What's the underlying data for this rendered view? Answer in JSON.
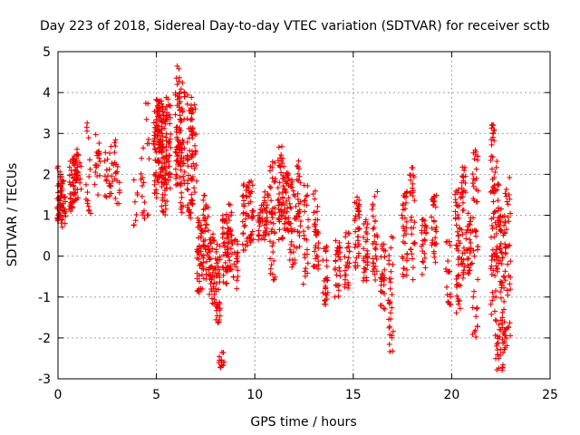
{
  "chart_data": {
    "type": "scatter",
    "title": "Day 223 of 2018, Sidereal Day-to-day VTEC variation (SDTVAR) for receiver sctb",
    "xlabel": "GPS time / hours",
    "ylabel": "SDTVAR / TECUs",
    "xlim": [
      0,
      25
    ],
    "ylim": [
      -3,
      5
    ],
    "xticks": [
      "0",
      "5",
      "10",
      "15",
      "20",
      "25"
    ],
    "yticks": [
      "-3",
      "-2",
      "-1",
      "0",
      "1",
      "2",
      "3",
      "4",
      "5"
    ],
    "grid": true,
    "marker": "+",
    "color": "#ee0000",
    "clusters": [
      {
        "x": 0.1,
        "lo": 0.7,
        "hi": 2.2,
        "n": 40
      },
      {
        "x": 0.25,
        "lo": 0.6,
        "hi": 1.9,
        "n": 30
      },
      {
        "x": 0.7,
        "lo": 1.1,
        "hi": 2.4,
        "n": 30
      },
      {
        "x": 0.9,
        "lo": 1.3,
        "hi": 2.6,
        "n": 30
      },
      {
        "x": 1.05,
        "lo": 1.6,
        "hi": 2.7,
        "n": 20
      },
      {
        "x": 1.55,
        "lo": 0.9,
        "hi": 3.5,
        "n": 16
      },
      {
        "x": 2.0,
        "lo": 1.4,
        "hi": 3.1,
        "n": 22
      },
      {
        "x": 2.5,
        "lo": 1.3,
        "hi": 2.6,
        "n": 16
      },
      {
        "x": 2.8,
        "lo": 1.5,
        "hi": 2.9,
        "n": 12
      },
      {
        "x": 3.0,
        "lo": 1.2,
        "hi": 2.3,
        "n": 14
      },
      {
        "x": 3.9,
        "lo": 0.4,
        "hi": 1.9,
        "n": 8
      },
      {
        "x": 4.3,
        "lo": 0.9,
        "hi": 2.8,
        "n": 12
      },
      {
        "x": 4.5,
        "lo": 1.0,
        "hi": 3.8,
        "n": 10
      },
      {
        "x": 5.0,
        "lo": 1.4,
        "hi": 3.9,
        "n": 50
      },
      {
        "x": 5.2,
        "lo": 1.8,
        "hi": 3.8,
        "n": 60
      },
      {
        "x": 5.4,
        "lo": 1.0,
        "hi": 3.8,
        "n": 60
      },
      {
        "x": 5.6,
        "lo": 1.6,
        "hi": 3.9,
        "n": 40
      },
      {
        "x": 6.1,
        "lo": 1.5,
        "hi": 4.7,
        "n": 55
      },
      {
        "x": 6.3,
        "lo": 1.0,
        "hi": 4.3,
        "n": 50
      },
      {
        "x": 6.7,
        "lo": 0.8,
        "hi": 4.0,
        "n": 45
      },
      {
        "x": 6.9,
        "lo": 1.2,
        "hi": 3.7,
        "n": 35
      },
      {
        "x": 7.2,
        "lo": -0.9,
        "hi": 1.0,
        "n": 45
      },
      {
        "x": 7.5,
        "lo": -0.6,
        "hi": 1.5,
        "n": 40
      },
      {
        "x": 7.8,
        "lo": -1.2,
        "hi": 0.6,
        "n": 40
      },
      {
        "x": 8.1,
        "lo": -1.7,
        "hi": 0.3,
        "n": 40
      },
      {
        "x": 8.3,
        "lo": -2.8,
        "hi": -2.3,
        "n": 14
      },
      {
        "x": 8.5,
        "lo": -0.7,
        "hi": 1.0,
        "n": 35
      },
      {
        "x": 8.7,
        "lo": -0.4,
        "hi": 1.5,
        "n": 35
      },
      {
        "x": 9.0,
        "lo": -0.8,
        "hi": 0.5,
        "n": 20
      },
      {
        "x": 9.5,
        "lo": 0.1,
        "hi": 1.8,
        "n": 30
      },
      {
        "x": 9.8,
        "lo": 0.3,
        "hi": 2.0,
        "n": 30
      },
      {
        "x": 10.3,
        "lo": 0.3,
        "hi": 1.3,
        "n": 25
      },
      {
        "x": 10.6,
        "lo": 0.3,
        "hi": 1.6,
        "n": 25
      },
      {
        "x": 10.9,
        "lo": -0.8,
        "hi": 2.4,
        "n": 40
      },
      {
        "x": 11.3,
        "lo": 0.3,
        "hi": 2.7,
        "n": 45
      },
      {
        "x": 11.6,
        "lo": 0.6,
        "hi": 2.3,
        "n": 40
      },
      {
        "x": 11.9,
        "lo": -0.3,
        "hi": 1.9,
        "n": 30
      },
      {
        "x": 12.2,
        "lo": 0.1,
        "hi": 2.5,
        "n": 30
      },
      {
        "x": 12.6,
        "lo": -0.7,
        "hi": 1.9,
        "n": 25
      },
      {
        "x": 13.1,
        "lo": -0.5,
        "hi": 1.6,
        "n": 35
      },
      {
        "x": 13.6,
        "lo": -1.2,
        "hi": 0.3,
        "n": 25
      },
      {
        "x": 14.2,
        "lo": -1.0,
        "hi": 0.4,
        "n": 30
      },
      {
        "x": 14.7,
        "lo": -0.8,
        "hi": 0.6,
        "n": 25
      },
      {
        "x": 15.2,
        "lo": -0.3,
        "hi": 1.6,
        "n": 35
      },
      {
        "x": 15.6,
        "lo": -0.7,
        "hi": 0.9,
        "n": 30
      },
      {
        "x": 16.1,
        "lo": -0.6,
        "hi": 1.8,
        "n": 30
      },
      {
        "x": 16.5,
        "lo": -1.3,
        "hi": 0.3,
        "n": 30
      },
      {
        "x": 16.9,
        "lo": -2.4,
        "hi": 0.5,
        "n": 30
      },
      {
        "x": 17.6,
        "lo": -0.5,
        "hi": 1.6,
        "n": 35
      },
      {
        "x": 18.0,
        "lo": -0.6,
        "hi": 2.2,
        "n": 30
      },
      {
        "x": 18.6,
        "lo": -0.5,
        "hi": 0.9,
        "n": 25
      },
      {
        "x": 19.1,
        "lo": -0.3,
        "hi": 1.6,
        "n": 30
      },
      {
        "x": 19.8,
        "lo": -1.5,
        "hi": 0.6,
        "n": 20
      },
      {
        "x": 20.3,
        "lo": -1.4,
        "hi": 1.7,
        "n": 45
      },
      {
        "x": 20.6,
        "lo": -0.8,
        "hi": 2.3,
        "n": 40
      },
      {
        "x": 20.9,
        "lo": -0.5,
        "hi": 1.2,
        "n": 30
      },
      {
        "x": 21.2,
        "lo": -2.0,
        "hi": 2.6,
        "n": 45
      },
      {
        "x": 22.1,
        "lo": -1.5,
        "hi": 3.3,
        "n": 55
      },
      {
        "x": 22.35,
        "lo": -2.8,
        "hi": 2.4,
        "n": 60
      },
      {
        "x": 22.6,
        "lo": -2.8,
        "hi": 1.4,
        "n": 55
      },
      {
        "x": 22.85,
        "lo": -2.3,
        "hi": 2.0,
        "n": 35
      }
    ]
  }
}
